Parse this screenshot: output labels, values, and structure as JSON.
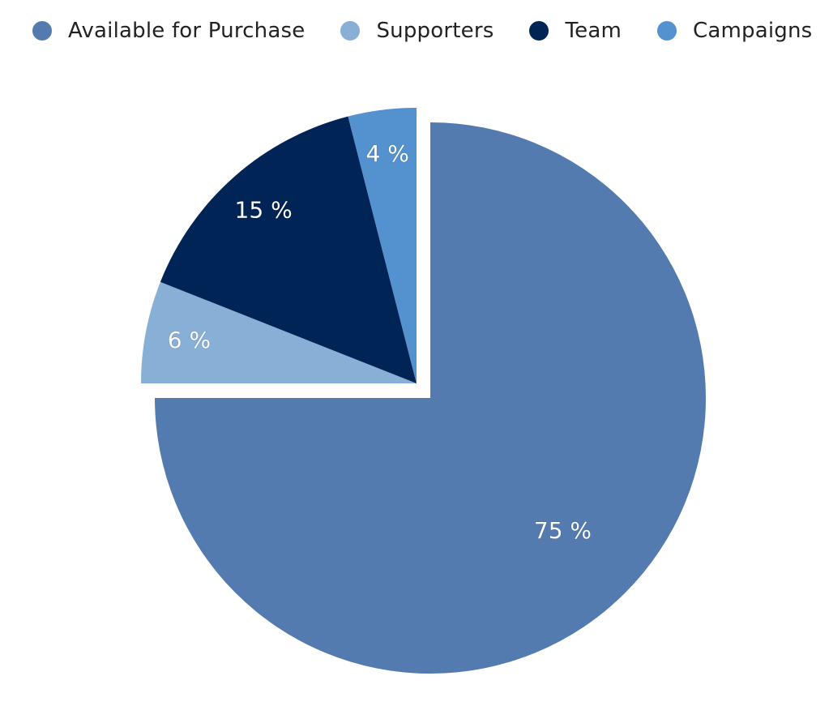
{
  "chart_data": {
    "type": "pie",
    "legend_position": "top",
    "slices": [
      {
        "name": "Available for Purchase",
        "value": 75,
        "label": "75 %",
        "color": "#537bb0",
        "exploded": false
      },
      {
        "name": "Supporters",
        "value": 6,
        "label": "6 %",
        "color": "#88afd6",
        "exploded": true
      },
      {
        "name": "Team",
        "value": 15,
        "label": "15 %",
        "color": "#002456",
        "exploded": true
      },
      {
        "name": "Campaigns",
        "value": 4,
        "label": "4 %",
        "color": "#5391cf",
        "exploded": true
      }
    ]
  }
}
